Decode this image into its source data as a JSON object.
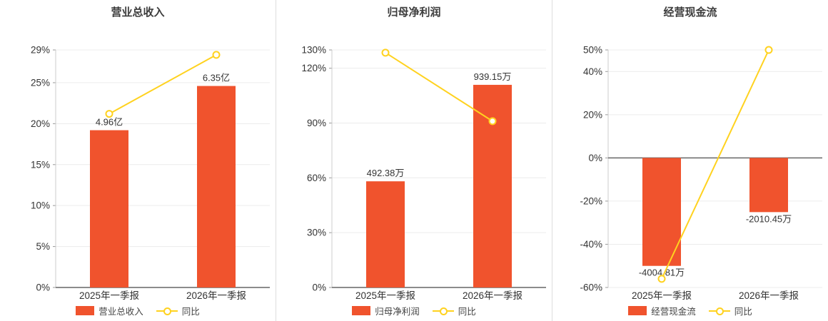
{
  "colors": {
    "bar": "#f0532d",
    "line": "#ffd21f",
    "grid": "#ececec",
    "axis": "#666666",
    "tick_text": "#333333"
  },
  "charts": [
    {
      "title": "营业总收入",
      "legend": {
        "bar": "营业总收入",
        "line": "同比"
      },
      "chart_data": {
        "type": "bar+line",
        "categories": [
          "2025年一季报",
          "2026年一季报"
        ],
        "bar_series": {
          "name": "营业总收入",
          "values": [
            4.96,
            6.35
          ],
          "unit": "亿",
          "labels": [
            "4.96亿",
            "6.35亿"
          ],
          "axis_heights_pct": [
            19.2,
            24.6
          ]
        },
        "line_series": {
          "name": "同比",
          "values_pct": [
            21.2,
            28.4
          ]
        },
        "ylim": [
          0,
          29
        ],
        "y_ticks": [
          0,
          5,
          10,
          15,
          20,
          25,
          29
        ],
        "y_tick_labels": [
          "0%",
          "5%",
          "10%",
          "15%",
          "20%",
          "25%",
          "29%"
        ],
        "grid": true,
        "legend_position": "bottom"
      }
    },
    {
      "title": "归母净利润",
      "legend": {
        "bar": "归母净利润",
        "line": "同比"
      },
      "chart_data": {
        "type": "bar+line",
        "categories": [
          "2025年一季报",
          "2026年一季报"
        ],
        "bar_series": {
          "name": "归母净利润",
          "values": [
            492.38,
            939.15
          ],
          "unit": "万",
          "labels": [
            "492.38万",
            "939.15万"
          ],
          "axis_heights_pct": [
            58.1,
            110.9
          ]
        },
        "line_series": {
          "name": "同比",
          "values_pct": [
            128.5,
            91.0
          ]
        },
        "ylim": [
          0,
          130
        ],
        "y_ticks": [
          0,
          30,
          60,
          90,
          120,
          130
        ],
        "y_tick_labels": [
          "0%",
          "30%",
          "60%",
          "90%",
          "120%",
          "130%"
        ],
        "grid": true,
        "legend_position": "bottom"
      }
    },
    {
      "title": "经营现金流",
      "legend": {
        "bar": "经营现金流",
        "line": "同比"
      },
      "chart_data": {
        "type": "bar+line",
        "categories": [
          "2025年一季报",
          "2026年一季报"
        ],
        "bar_series": {
          "name": "经营现金流",
          "values": [
            -4004.81,
            -2010.45
          ],
          "unit": "万",
          "labels": [
            "-4004.81万",
            "-2010.45万"
          ],
          "axis_heights_pct": [
            -50.0,
            -25.1
          ]
        },
        "line_series": {
          "name": "同比",
          "values_pct": [
            -56.0,
            50.0
          ]
        },
        "ylim": [
          -60,
          50
        ],
        "y_ticks": [
          -60,
          -40,
          -20,
          0,
          20,
          40,
          50
        ],
        "y_tick_labels": [
          "-60%",
          "-40%",
          "-20%",
          "0%",
          "20%",
          "40%",
          "50%"
        ],
        "grid": true,
        "legend_position": "bottom"
      }
    }
  ]
}
